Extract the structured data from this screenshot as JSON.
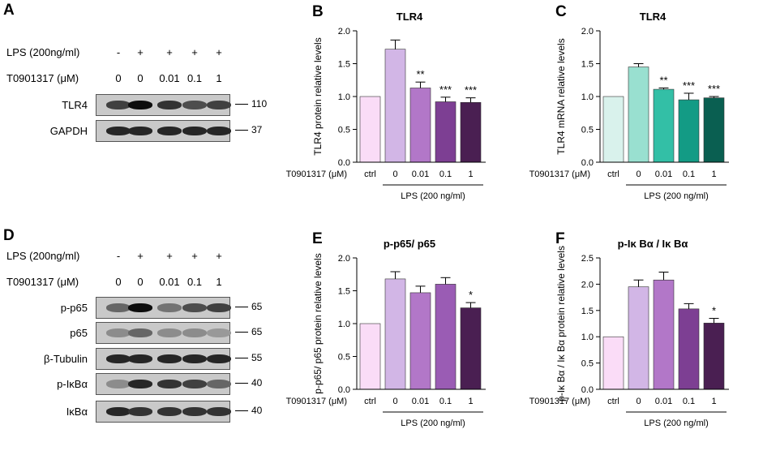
{
  "panel_a": {
    "letter": "A",
    "lps_label": "LPS (200ng/ml)",
    "t_label": "T0901317 (μM)",
    "lps_values": [
      "-",
      "+",
      "+",
      "+",
      "+"
    ],
    "t_values": [
      "0",
      "0",
      "0.01",
      "0.1",
      "1"
    ],
    "blots": [
      {
        "name": "TLR4",
        "mw": "110",
        "intensity": [
          0.75,
          0.95,
          0.8,
          0.7,
          0.75
        ]
      },
      {
        "name": "GAPDH",
        "mw": "37",
        "intensity": [
          0.85,
          0.85,
          0.85,
          0.85,
          0.85
        ]
      }
    ]
  },
  "panel_d": {
    "letter": "D",
    "lps_label": "LPS (200ng/ml)",
    "t_label": "T0901317 (μM)",
    "lps_values": [
      "-",
      "+",
      "+",
      "+",
      "+"
    ],
    "t_values": [
      "0",
      "0",
      "0.01",
      "0.1",
      "1"
    ],
    "blots": [
      {
        "name": "p-p65",
        "mw": "65",
        "intensity": [
          0.6,
          0.95,
          0.55,
          0.7,
          0.75
        ]
      },
      {
        "name": "p65",
        "mw": "65",
        "intensity": [
          0.45,
          0.6,
          0.45,
          0.45,
          0.4
        ]
      },
      {
        "name": "β-Tubulin",
        "mw": "55",
        "intensity": [
          0.85,
          0.85,
          0.85,
          0.85,
          0.85
        ]
      },
      {
        "name": "p-IκBα",
        "mw": "40",
        "intensity": [
          0.45,
          0.85,
          0.8,
          0.75,
          0.6
        ]
      },
      {
        "name": "IκBα",
        "mw": "40",
        "intensity": [
          0.85,
          0.8,
          0.8,
          0.8,
          0.8
        ]
      }
    ]
  },
  "chart_data": [
    {
      "panel": "B",
      "type": "bar",
      "title": "TLR4",
      "ylabel": "TLR4 protein relative levels",
      "ylim": [
        0,
        2.0
      ],
      "yticks": [
        "0.0",
        "0.5",
        "1.0",
        "1.5",
        "2.0"
      ],
      "x_row_label": "T0901317 (μM)",
      "categories": [
        "ctrl",
        "0",
        "0.01",
        "0.1",
        "1"
      ],
      "values": [
        1.0,
        1.72,
        1.13,
        0.92,
        0.91
      ],
      "errors": [
        0,
        0.14,
        0.09,
        0.07,
        0.07
      ],
      "significance": [
        "",
        "",
        "**",
        "***",
        "***"
      ],
      "group_label": "LPS (200 ng/ml)",
      "colors": [
        "#fadcf7",
        "#d2b6e6",
        "#b277c8",
        "#7d3f93",
        "#4a1f52"
      ]
    },
    {
      "panel": "C",
      "type": "bar",
      "title": "TLR4",
      "ylabel": "TLR4 mRNA relative levels",
      "ylim": [
        0,
        2.0
      ],
      "yticks": [
        "0.0",
        "0.5",
        "1.0",
        "1.5",
        "2.0"
      ],
      "x_row_label": "T0901317 (μM)",
      "categories": [
        "ctrl",
        "0",
        "0.01",
        "0.1",
        "1"
      ],
      "values": [
        1.0,
        1.45,
        1.11,
        0.95,
        0.98
      ],
      "errors": [
        0,
        0.05,
        0.02,
        0.1,
        0.02
      ],
      "significance": [
        "",
        "",
        "**",
        "***",
        "***"
      ],
      "group_label": "LPS (200 ng/ml)",
      "colors": [
        "#d9f2ec",
        "#99e0d0",
        "#33bfa6",
        "#139b85",
        "#0a5f51"
      ]
    },
    {
      "panel": "E",
      "type": "bar",
      "title": "p-p65/ p65",
      "ylabel": "p-p65/ p65 protein relative levels",
      "ylim": [
        0,
        2.0
      ],
      "yticks": [
        "0.0",
        "0.5",
        "1.0",
        "1.5",
        "2.0"
      ],
      "x_row_label": "T0901317 (μM)",
      "categories": [
        "ctrl",
        "0",
        "0.01",
        "0.1",
        "1"
      ],
      "values": [
        1.0,
        1.68,
        1.47,
        1.6,
        1.24
      ],
      "errors": [
        0,
        0.11,
        0.1,
        0.1,
        0.08
      ],
      "significance": [
        "",
        "",
        "",
        "",
        "*"
      ],
      "group_label": "LPS (200 ng/ml)",
      "colors": [
        "#fadcf7",
        "#d2b6e6",
        "#b277c8",
        "#9a5cb4",
        "#4a1f52"
      ]
    },
    {
      "panel": "F",
      "type": "bar",
      "title": "p-Iκ Bα / Iκ Bα",
      "ylabel": "p-Iκ Bα / Iκ Bα  protein relative levels",
      "ylim": [
        0,
        2.5
      ],
      "yticks": [
        "0.0",
        "0.5",
        "1.0",
        "1.5",
        "2.0",
        "2.5"
      ],
      "x_row_label": "T0901317 (μM)",
      "categories": [
        "ctrl",
        "0",
        "0.01",
        "0.1",
        "1"
      ],
      "values": [
        1.0,
        1.95,
        2.08,
        1.53,
        1.26
      ],
      "errors": [
        0,
        0.13,
        0.15,
        0.1,
        0.09
      ],
      "significance": [
        "",
        "",
        "",
        "",
        "*"
      ],
      "group_label": "LPS (200 ng/ml)",
      "colors": [
        "#fadcf7",
        "#d2b6e6",
        "#b277c8",
        "#7d3f93",
        "#4a1f52"
      ]
    }
  ]
}
